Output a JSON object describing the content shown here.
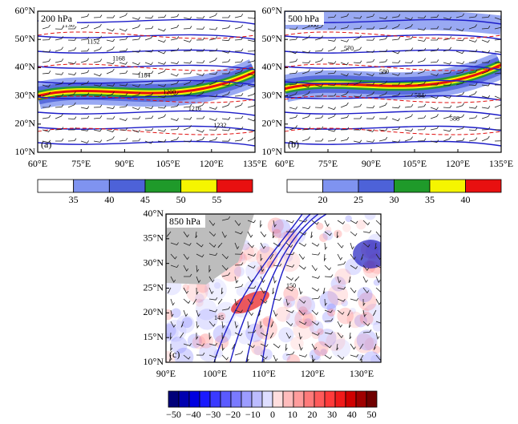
{
  "panels": [
    {
      "label": "(a)",
      "level": "200 hPa",
      "xticks": [
        "60°E",
        "75°E",
        "90°E",
        "105°E",
        "120°E",
        "135°E"
      ],
      "yticks": [
        "60°N",
        "50°N",
        "40°N",
        "30°N",
        "20°N",
        "10°N"
      ],
      "contour_labels": [
        "1136",
        "1152",
        "1168",
        "1184",
        "1200",
        "1216",
        "1232"
      ],
      "colorbar": {
        "ticks": [
          "35",
          "40",
          "45",
          "50",
          "55"
        ],
        "colors": [
          "#ffffff",
          "#7f93f0",
          "#4d62d8",
          "#1f9a2a",
          "#f5f500",
          "#e81010"
        ]
      }
    },
    {
      "label": "(b)",
      "level": "500 hPa",
      "xticks": [
        "60°E",
        "75°E",
        "90°E",
        "105°E",
        "120°E",
        "135°E"
      ],
      "yticks": [
        "60°N",
        "50°N",
        "40°N",
        "30°N",
        "20°N",
        "10°N"
      ],
      "contour_labels": [
        "560",
        "570",
        "580",
        "584",
        "588"
      ],
      "colorbar": {
        "ticks": [
          "20",
          "25",
          "30",
          "35",
          "40"
        ],
        "colors": [
          "#ffffff",
          "#7f93f0",
          "#4d62d8",
          "#1f9a2a",
          "#f5f500",
          "#e81010"
        ]
      }
    },
    {
      "label": "(c)",
      "level": "850 hPa",
      "xticks": [
        "90°E",
        "100°E",
        "110°E",
        "120°E",
        "130°E"
      ],
      "yticks": [
        "40°N",
        "35°N",
        "30°N",
        "25°N",
        "20°N",
        "15°N",
        "10°N"
      ],
      "contour_labels": [
        "145",
        "150"
      ],
      "colorbar": {
        "ticks": [
          "−50",
          "−40",
          "−30",
          "−20",
          "−10",
          "0",
          "10",
          "20",
          "30",
          "40",
          "50"
        ],
        "colors": [
          "#00007a",
          "#0000b0",
          "#0000e0",
          "#1a1aff",
          "#3a3aff",
          "#5a5aff",
          "#7a7aff",
          "#9c9cff",
          "#bcbcff",
          "#dedeff",
          "#ffdede",
          "#ffbcbc",
          "#ff9c9c",
          "#ff7a7a",
          "#ff5a5a",
          "#ff3a3a",
          "#f01a1a",
          "#d00000",
          "#a00000",
          "#700000"
        ]
      }
    }
  ]
}
